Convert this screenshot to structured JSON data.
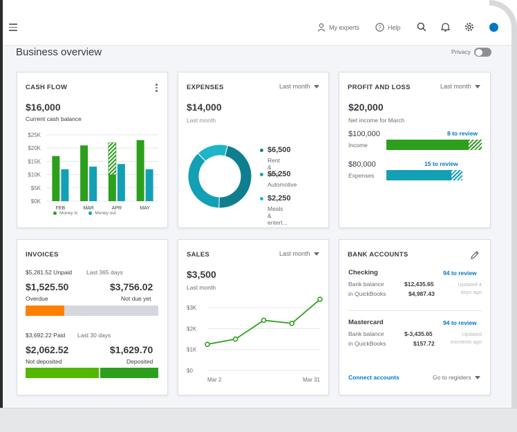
{
  "nav": {
    "my_experts": "My experts",
    "help": "Help"
  },
  "page": {
    "title": "Business overview",
    "privacy_label": "Privacy"
  },
  "colors": {
    "green": "#2ca01c",
    "teal": "#13a0b4",
    "dark_teal": "#0f7f8f",
    "orange": "#ff8000",
    "light_green": "#53b700",
    "link_blue": "#0077c5"
  },
  "cash_flow": {
    "title": "CASH FLOW",
    "amount": "$16,000",
    "subtitle": "Current cash balance",
    "y_ticks": [
      "$25K",
      "$20K",
      "$15K",
      "$10K",
      "$5K",
      "$0K"
    ],
    "legend_in": "Money in",
    "legend_out": "Money out"
  },
  "expenses": {
    "title": "EXPENSES",
    "filter": "Last month",
    "amount": "$14,000",
    "subtitle": "Last month",
    "items": [
      {
        "amount": "$6,500",
        "label": "Rent & mort..."
      },
      {
        "amount": "$5,250",
        "label": "Automotive"
      },
      {
        "amount": "$2,250",
        "label": "Meals & entert..."
      }
    ]
  },
  "pnl": {
    "title": "PROFIT AND LOSS",
    "filter": "Last month",
    "amount": "$20,000",
    "subtitle": "Net income for March",
    "income_amount": "$100,000",
    "income_label": "Income",
    "income_review": "8 to review",
    "expenses_amount": "$80,000",
    "expenses_label": "Expenses",
    "expenses_review": "15 to review"
  },
  "invoices": {
    "title": "INVOICES",
    "unpaid_amount": "$5,281.52 Unpaid",
    "unpaid_period": "Last 365 days",
    "overdue_amount": "$1,525.50",
    "overdue_label": "Overdue",
    "not_due_amount": "$3,756.02",
    "not_due_label": "Not due yet",
    "paid_amount": "$3,692.22 Paid",
    "paid_period": "Last 30 days",
    "not_deposited_amount": "$2,062.52",
    "not_deposited_label": "Not deposited",
    "deposited_amount": "$1,629.70",
    "deposited_label": "Deposited",
    "overdue_fraction": 0.29,
    "not_deposited_fraction": 0.56
  },
  "sales": {
    "title": "SALES",
    "filter": "Last month",
    "amount": "$3,500",
    "subtitle": "Last month",
    "y_ticks": [
      "$3K",
      "$2K",
      "$1K",
      "$0"
    ],
    "x_start": "Mar 2",
    "x_end": "Mar 31"
  },
  "bank": {
    "title": "BANK ACCOUNTS",
    "accounts": [
      {
        "name": "Checking",
        "review": "94 to review",
        "bank_label": "Bank balance",
        "bank_balance": "$12,435.65",
        "qb_label": "in QuickBooks",
        "qb_balance": "$4,987.43",
        "updated": "Updated 4 days ago"
      },
      {
        "name": "Mastercard",
        "review": "94 to review",
        "bank_label": "Bank balance",
        "bank_balance": "$-3,435.65",
        "qb_label": "in QuickBooks",
        "qb_balance": "$157.72",
        "updated": "Updated moments ago"
      }
    ],
    "connect": "Connect accounts",
    "registers": "Go to registers"
  },
  "chart_data": [
    {
      "type": "bar",
      "title": "CASH FLOW",
      "categories": [
        "FEB",
        "MAR",
        "APR",
        "MAY"
      ],
      "ylim": [
        0,
        25000
      ],
      "series": [
        {
          "name": "Money in",
          "values": [
            17000,
            21000,
            22000,
            23000
          ]
        },
        {
          "name": "Money out",
          "values": [
            12000,
            13000,
            14000,
            12000
          ]
        }
      ]
    },
    {
      "type": "pie",
      "title": "EXPENSES",
      "categories": [
        "Rent & mort...",
        "Automotive",
        "Meals & entert..."
      ],
      "values": [
        6500,
        5250,
        2250
      ]
    },
    {
      "type": "line",
      "title": "SALES",
      "x": [
        "Mar 2",
        "",
        "",
        "",
        "Mar 31"
      ],
      "values": [
        1250,
        1500,
        2400,
        2250,
        3400
      ],
      "ylim": [
        0,
        3500
      ]
    }
  ]
}
